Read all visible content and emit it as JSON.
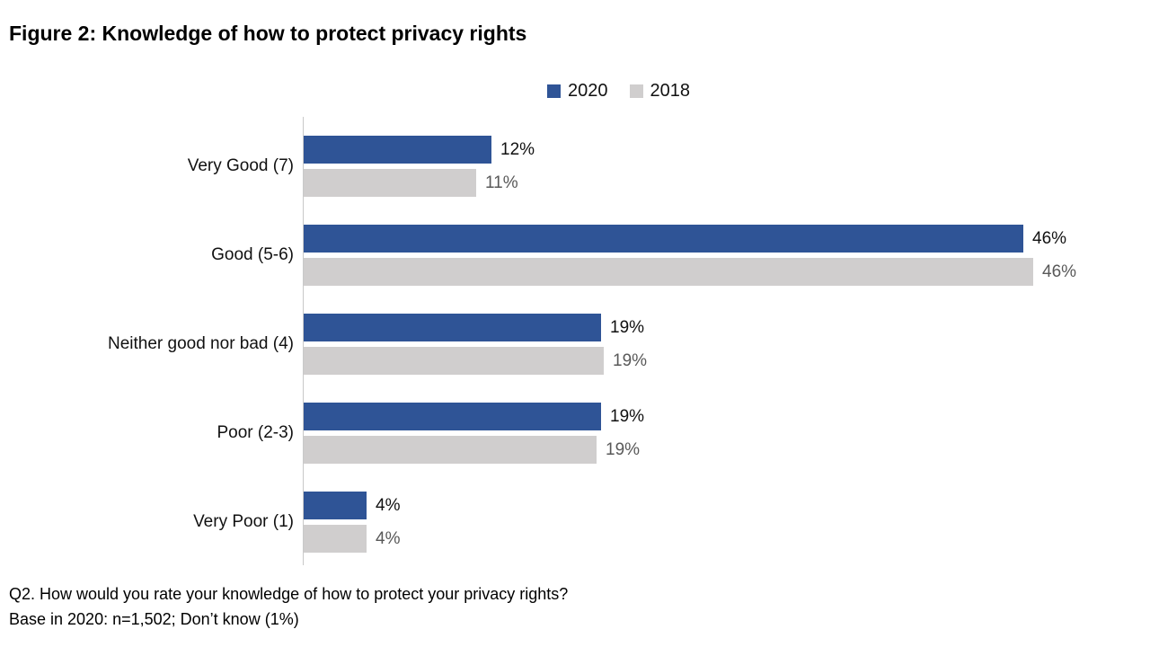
{
  "title": "Figure 2: Knowledge of how to protect privacy rights",
  "legend": {
    "items": [
      {
        "label": "2020",
        "color": "#2F5496"
      },
      {
        "label": "2018",
        "color": "#D0CECE"
      }
    ]
  },
  "footnote": {
    "line1": "Q2. How would you rate your knowledge of how to protect your privacy rights?",
    "line2": "Base in 2020: n=1,502; Don’t know (1%)"
  },
  "chart_data": {
    "type": "bar",
    "orientation": "horizontal",
    "title": "Figure 2: Knowledge of how to protect privacy rights",
    "categories": [
      "Very Good (7)",
      "Good (5-6)",
      "Neither good nor bad (4)",
      "Poor (2-3)",
      "Very Poor (1)"
    ],
    "series": [
      {
        "name": "2020",
        "color": "#2F5496",
        "values": [
          12,
          46,
          19,
          19,
          4
        ],
        "labels": [
          "12%",
          "46%",
          "19%",
          "19%",
          "4%"
        ],
        "label_color": "#111111",
        "render_values": [
          12,
          46,
          19,
          19,
          4
        ]
      },
      {
        "name": "2018",
        "color": "#D0CECE",
        "values": [
          11,
          46,
          19,
          19,
          4
        ],
        "labels": [
          "11%",
          "46%",
          "19%",
          "19%",
          "4%"
        ],
        "label_color": "#595959",
        "render_values": [
          11,
          46.6,
          19.2,
          18.7,
          4
        ]
      }
    ],
    "value_suffix": "%",
    "xlim": [
      0,
      48
    ],
    "grid": false,
    "legend_position": "top-center",
    "xlabel": "",
    "ylabel": ""
  }
}
